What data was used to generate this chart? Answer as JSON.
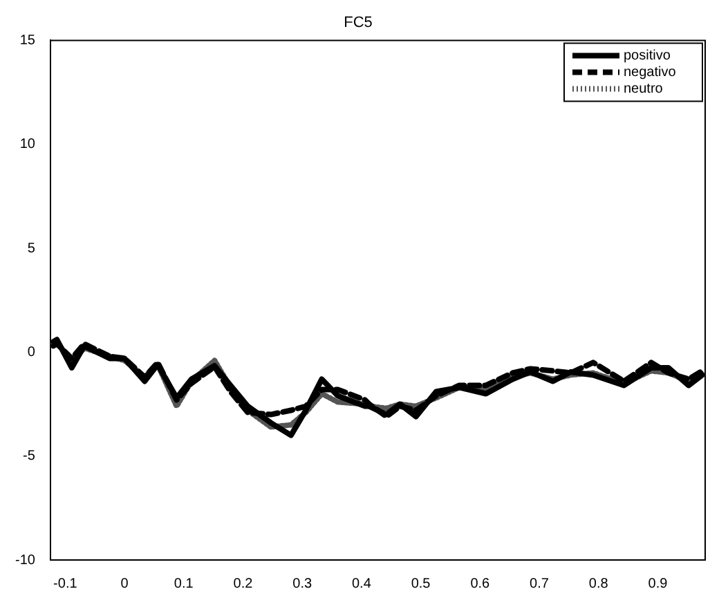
{
  "chart_data": {
    "type": "line",
    "title": "FC5",
    "x": [
      -0.12,
      -0.114,
      -0.089,
      -0.068,
      -0.025,
      0,
      0.034,
      0.056,
      0.088,
      0.113,
      0.152,
      0.179,
      0.208,
      0.247,
      0.281,
      0.306,
      0.333,
      0.36,
      0.406,
      0.413,
      0.442,
      0.465,
      0.492,
      0.526,
      0.565,
      0.61,
      0.655,
      0.685,
      0.723,
      0.753,
      0.791,
      0.843,
      0.889,
      0.918,
      0.952,
      0.975
    ],
    "series": [
      {
        "name": "positivo",
        "color": "#000000",
        "line_style": "solid",
        "values": [
          0.5,
          0.6,
          -0.75,
          0.3,
          -0.3,
          -0.3,
          -1.4,
          -0.6,
          -2.2,
          -1.3,
          -0.65,
          -1.6,
          -2.6,
          -3.4,
          -4.0,
          -2.8,
          -1.3,
          -2.1,
          -2.6,
          -2.6,
          -3.0,
          -2.5,
          -3.1,
          -1.9,
          -1.7,
          -2.0,
          -1.3,
          -0.95,
          -1.4,
          -0.95,
          -1.1,
          -1.6,
          -0.75,
          -0.75,
          -1.6,
          -1.1
        ]
      },
      {
        "name": "negativo",
        "color": "#000000",
        "line_style": "dashed",
        "values": [
          0.3,
          0.4,
          -0.3,
          0.4,
          -0.2,
          -0.3,
          -1.2,
          -0.5,
          -2.3,
          -1.5,
          -0.7,
          -1.9,
          -2.9,
          -3.0,
          -2.8,
          -2.6,
          -1.8,
          -1.8,
          -2.3,
          -2.5,
          -3.1,
          -2.6,
          -2.8,
          -2.1,
          -1.6,
          -1.6,
          -1.0,
          -0.8,
          -0.9,
          -1.0,
          -0.5,
          -1.4,
          -0.5,
          -1.0,
          -1.3,
          -0.9
        ]
      },
      {
        "name": "neutro",
        "color": "#555555",
        "line_style": "dotted",
        "values": [
          0.4,
          0.5,
          -0.5,
          0.2,
          -0.2,
          -0.4,
          -1.2,
          -0.6,
          -2.6,
          -1.4,
          -0.4,
          -1.7,
          -2.8,
          -3.6,
          -3.5,
          -2.9,
          -2.0,
          -2.4,
          -2.5,
          -2.6,
          -2.7,
          -2.5,
          -2.6,
          -2.2,
          -1.7,
          -1.8,
          -1.2,
          -1.0,
          -1.3,
          -1.1,
          -1.0,
          -1.5,
          -0.9,
          -1.0,
          -1.4,
          -1.0
        ]
      }
    ],
    "xlim": [
      -0.125,
      0.98
    ],
    "xticks": [
      -0.1,
      0,
      0.1,
      0.2,
      0.3,
      0.4,
      0.5,
      0.6,
      0.7,
      0.8,
      0.9
    ],
    "ylim": [
      -10,
      15
    ],
    "yticks": [
      -10,
      -5,
      0,
      5,
      10,
      15
    ],
    "grid": false,
    "legend": "top right",
    "marker": "none"
  }
}
